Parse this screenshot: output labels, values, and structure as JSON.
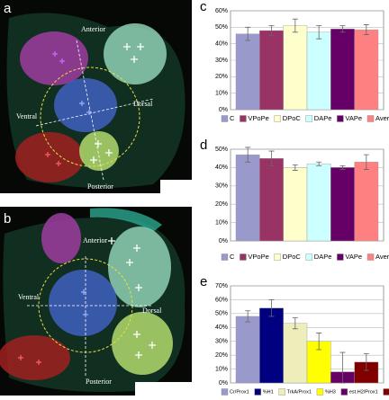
{
  "images": [
    {
      "letter": "a",
      "labels": [
        "Anterior",
        "Dorsal",
        "Ventral",
        "Posterior"
      ]
    },
    {
      "letter": "b",
      "labels": [
        "Anterior",
        "Dorsal",
        "Ventral",
        "Posterior"
      ]
    }
  ],
  "chart_data": [
    {
      "type": "bar",
      "letter": "c",
      "ylim": [
        0,
        60
      ],
      "yticks": [
        {
          "value": 0,
          "label": "0%"
        },
        {
          "value": 10,
          "label": "10%"
        },
        {
          "value": 20,
          "label": "20%"
        },
        {
          "value": 30,
          "label": "30%"
        },
        {
          "value": 40,
          "label": "40%"
        },
        {
          "value": 50,
          "label": "50%"
        },
        {
          "value": 60,
          "label": "60%"
        }
      ],
      "grid": true,
      "series": [
        {
          "name": "C",
          "color": "#9999cc",
          "values": [
            46
          ],
          "errors": [
            4
          ]
        },
        {
          "name": "VPoPe",
          "color": "#993366",
          "values": [
            48
          ],
          "errors": [
            3
          ]
        },
        {
          "name": "DPoC",
          "color": "#ffffcc",
          "values": [
            51
          ],
          "errors": [
            4
          ]
        },
        {
          "name": "DAPe",
          "color": "#ccffff",
          "values": [
            47
          ],
          "errors": [
            4
          ]
        },
        {
          "name": "VAPe",
          "color": "#660066",
          "values": [
            49
          ],
          "errors": [
            2
          ]
        },
        {
          "name": "Average",
          "color": "#ff8080",
          "values": [
            48.5
          ],
          "errors": [
            3
          ]
        }
      ]
    },
    {
      "type": "bar",
      "letter": "d",
      "ylim": [
        0,
        50
      ],
      "yticks": [
        {
          "value": 0,
          "label": "0%"
        },
        {
          "value": 10,
          "label": "10%"
        },
        {
          "value": 20,
          "label": "20%"
        },
        {
          "value": 30,
          "label": "30%"
        },
        {
          "value": 40,
          "label": "40%"
        },
        {
          "value": 50,
          "label": "50%"
        }
      ],
      "grid": true,
      "series": [
        {
          "name": "C",
          "color": "#9999cc",
          "values": [
            47
          ],
          "errors": [
            4
          ]
        },
        {
          "name": "VPoPe",
          "color": "#993366",
          "values": [
            45
          ],
          "errors": [
            4
          ]
        },
        {
          "name": "DPoC",
          "color": "#ffffcc",
          "values": [
            40
          ],
          "errors": [
            1.5
          ]
        },
        {
          "name": "DAPe",
          "color": "#ccffff",
          "values": [
            42
          ],
          "errors": [
            1
          ]
        },
        {
          "name": "VAPe",
          "color": "#660066",
          "values": [
            40
          ],
          "errors": [
            1
          ]
        },
        {
          "name": "Average",
          "color": "#ff8080",
          "values": [
            43
          ],
          "errors": [
            4
          ]
        }
      ]
    },
    {
      "type": "bar",
      "letter": "e",
      "ylim": [
        0,
        70
      ],
      "yticks": [
        {
          "value": 0,
          "label": "0%"
        },
        {
          "value": 10,
          "label": "10%"
        },
        {
          "value": 20,
          "label": "20%"
        },
        {
          "value": 30,
          "label": "30%"
        },
        {
          "value": 40,
          "label": "40%"
        },
        {
          "value": 50,
          "label": "50%"
        },
        {
          "value": 60,
          "label": "60%"
        },
        {
          "value": 70,
          "label": "70%"
        }
      ],
      "grid": true,
      "series": [
        {
          "name": "Cr/Prox1",
          "color": "#9999cc",
          "values": [
            48
          ],
          "errors": [
            4
          ]
        },
        {
          "name": "%H1",
          "color": "#000080",
          "values": [
            54
          ],
          "errors": [
            6
          ]
        },
        {
          "name": "TrkA/Prox1",
          "color": "#eeeebb",
          "values": [
            43
          ],
          "errors": [
            4
          ]
        },
        {
          "name": "%H3",
          "color": "#ffff00",
          "values": [
            30
          ],
          "errors": [
            6
          ]
        },
        {
          "name": "est.H2/Prox1",
          "color": "#660066",
          "values": [
            8
          ],
          "errors": [
            14
          ]
        },
        {
          "name": "%H2",
          "color": "#800000",
          "values": [
            15
          ],
          "errors": [
            6
          ]
        }
      ]
    }
  ]
}
